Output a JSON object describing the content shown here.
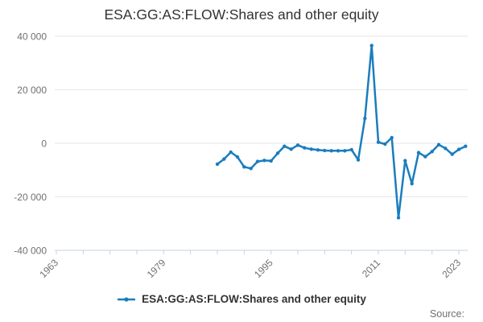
{
  "title": "ESA:GG:AS:FLOW:Shares and other equity",
  "legend": {
    "label": "ESA:GG:AS:FLOW:Shares and other equity"
  },
  "footer": {
    "source_label": "Source:"
  },
  "colors": {
    "line": "#1a7dbd",
    "grid": "#e6e6e6",
    "axis": "#c6d2e0",
    "tick_label": "#707070",
    "title_text": "#333333"
  },
  "chart_data": {
    "type": "line",
    "title": "ESA:GG:AS:FLOW:Shares and other equity",
    "xlabel": "",
    "ylabel": "",
    "grid": "horizontal-only",
    "legend_position": "bottom",
    "x_axis": {
      "min": 1963,
      "max": 2024,
      "tick_step": 4,
      "ticks": [
        1963,
        1967,
        1971,
        1975,
        1979,
        1983,
        1987,
        1991,
        1995,
        1999,
        2003,
        2007,
        2011,
        2015,
        2019,
        2023
      ],
      "labeled_ticks": [
        1963,
        1979,
        1995,
        2011,
        2023
      ]
    },
    "y_axis": {
      "min": -40000,
      "max": 40000,
      "ticks": [
        {
          "value": 40000,
          "label": "40 000"
        },
        {
          "value": 20000,
          "label": "20 000"
        },
        {
          "value": 0,
          "label": "0"
        },
        {
          "value": -20000,
          "label": "-20 000"
        },
        {
          "value": -40000,
          "label": "-40 000"
        }
      ]
    },
    "series": [
      {
        "name": "ESA:GG:AS:FLOW:Shares and other equity",
        "color": "#1a7dbd",
        "points": [
          [
            1987,
            -7800
          ],
          [
            1988,
            -5900
          ],
          [
            1989,
            -3300
          ],
          [
            1990,
            -5100
          ],
          [
            1991,
            -8800
          ],
          [
            1992,
            -9400
          ],
          [
            1993,
            -6800
          ],
          [
            1994,
            -6400
          ],
          [
            1995,
            -6600
          ],
          [
            1996,
            -3700
          ],
          [
            1997,
            -1100
          ],
          [
            1998,
            -2200
          ],
          [
            1999,
            -700
          ],
          [
            2000,
            -1700
          ],
          [
            2001,
            -2200
          ],
          [
            2002,
            -2500
          ],
          [
            2003,
            -2700
          ],
          [
            2004,
            -2800
          ],
          [
            2005,
            -2800
          ],
          [
            2006,
            -2800
          ],
          [
            2007,
            -2400
          ],
          [
            2008,
            -6200
          ],
          [
            2009,
            9300
          ],
          [
            2010,
            36500
          ],
          [
            2011,
            400
          ],
          [
            2012,
            -300
          ],
          [
            2013,
            2100
          ],
          [
            2014,
            -27800
          ],
          [
            2015,
            -6500
          ],
          [
            2016,
            -15100
          ],
          [
            2017,
            -3500
          ],
          [
            2018,
            -5000
          ],
          [
            2019,
            -3100
          ],
          [
            2020,
            -500
          ],
          [
            2021,
            -1900
          ],
          [
            2022,
            -4100
          ],
          [
            2023,
            -2300
          ],
          [
            2024,
            -1100
          ]
        ]
      }
    ]
  }
}
